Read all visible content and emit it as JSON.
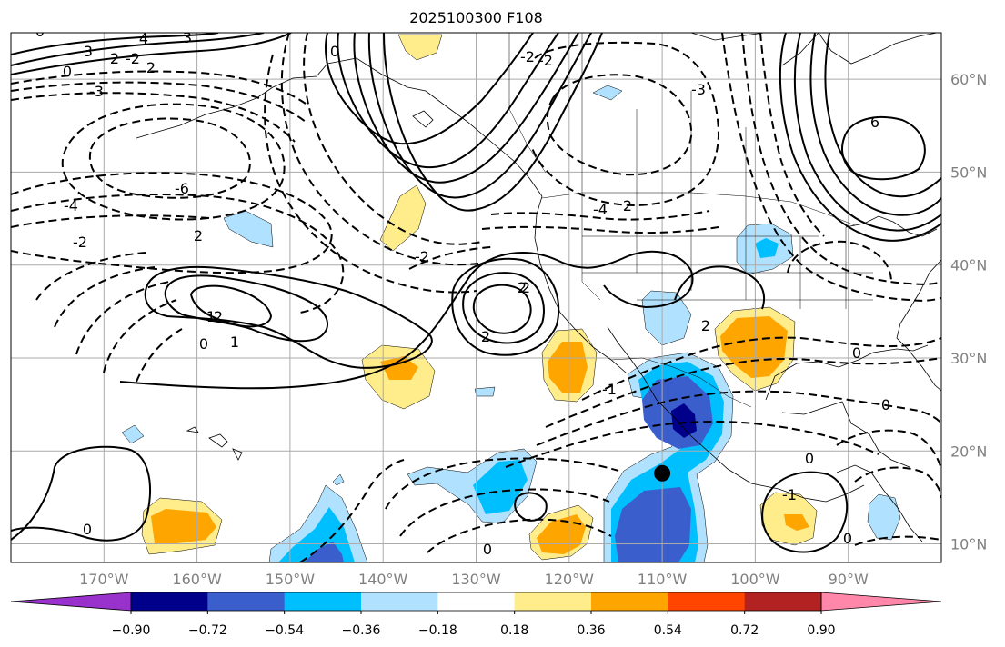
{
  "title": "2025100300 F108",
  "map": {
    "lon_range": [
      -180,
      -80
    ],
    "lat_range": [
      8,
      65
    ],
    "lon_ticks": [
      "170°W",
      "160°W",
      "150°W",
      "140°W",
      "130°W",
      "120°W",
      "110°W",
      "100°W",
      "90°W"
    ],
    "lat_ticks": [
      "60°N",
      "50°N",
      "40°N",
      "30°N",
      "20°N",
      "10°N"
    ],
    "contour_labels": [
      "0",
      "4",
      "3",
      "-3",
      "2",
      "-2",
      "2",
      "-3",
      "-6",
      "0",
      "-4",
      "-2",
      "2",
      "-2",
      "-4",
      "-3",
      "0",
      "6",
      "2",
      "-2",
      "-2",
      "2",
      "2",
      "2",
      "1",
      "0",
      "1",
      "2",
      "2",
      "0",
      "-1",
      "0",
      "0",
      "0",
      "-1",
      "0",
      "0"
    ],
    "marker": {
      "lon": -110,
      "lat": 17.6,
      "label": ""
    }
  },
  "colorbar": {
    "tick_labels": [
      "−0.90",
      "−0.72",
      "−0.54",
      "−0.36",
      "−0.18",
      "0.18",
      "0.36",
      "0.54",
      "0.72",
      "0.90"
    ],
    "colors": [
      "#9932cc",
      "#00008b",
      "#3a5fcd",
      "#00bfff",
      "#b0e2ff",
      "#ffffff",
      "#ffec8b",
      "#ffa500",
      "#ff4500",
      "#b22222",
      "#ff88aa"
    ]
  }
}
